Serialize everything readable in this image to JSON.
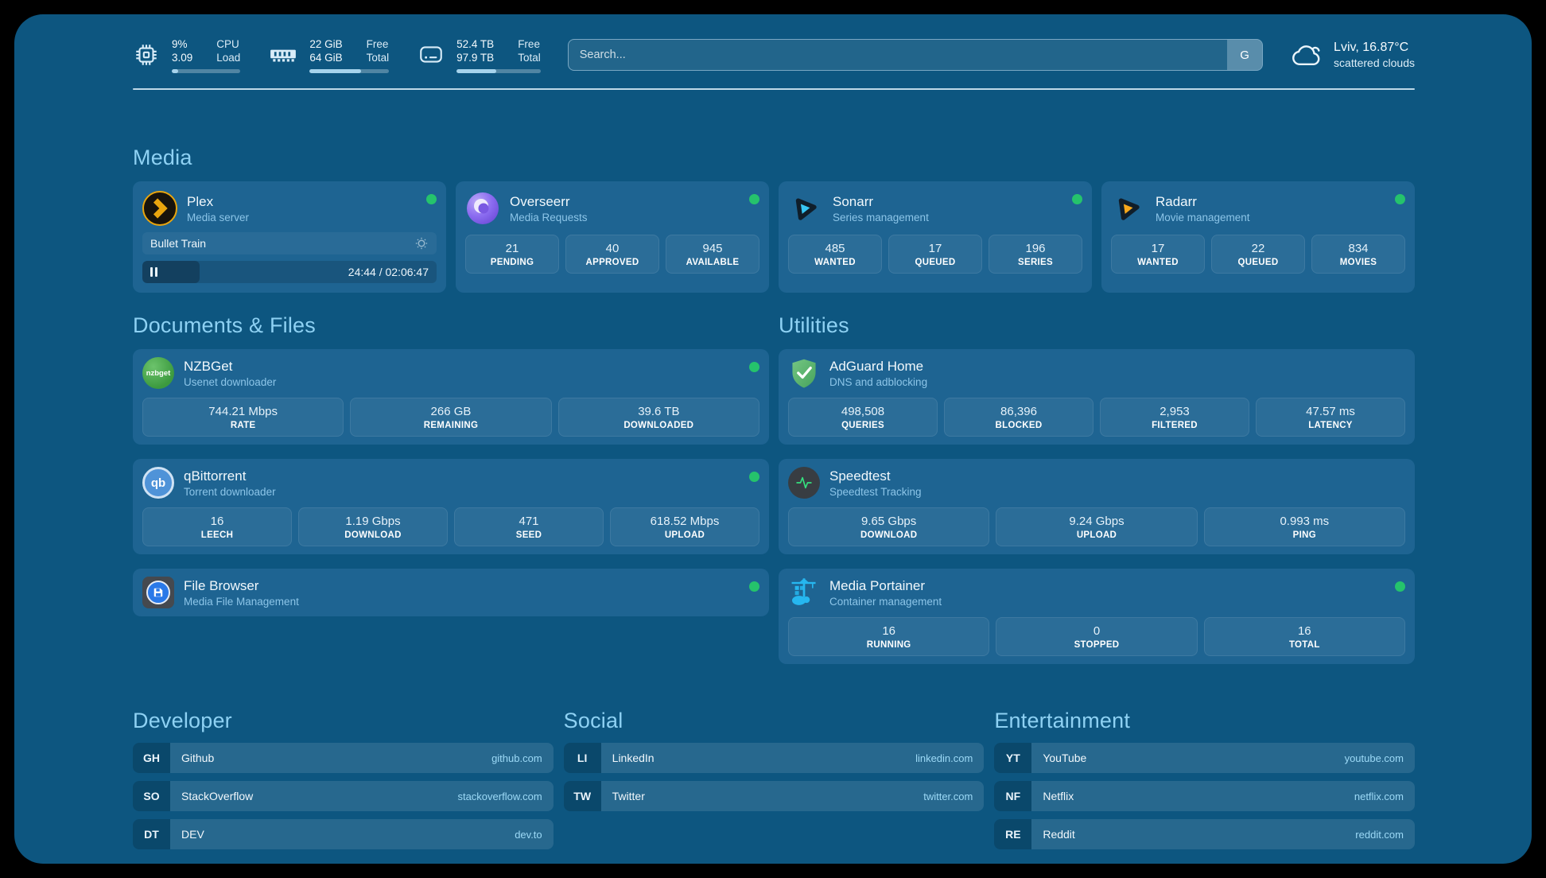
{
  "header": {
    "stats": [
      {
        "icon": "cpu-icon",
        "value_top": "9%",
        "value_bottom": "3.09",
        "label_top": "CPU",
        "label_bottom": "Load",
        "progress_pct": 9
      },
      {
        "icon": "ram-icon",
        "value_top": "22 GiB",
        "value_bottom": "64 GiB",
        "label_top": "Free",
        "label_bottom": "Total",
        "progress_pct": 65
      },
      {
        "icon": "disk-icon",
        "value_top": "52.4 TB",
        "value_bottom": "97.9 TB",
        "label_top": "Free",
        "label_bottom": "Total",
        "progress_pct": 47
      }
    ],
    "search": {
      "placeholder": "Search...",
      "engine_label": "G"
    },
    "weather": {
      "location_temp": "Lviv, 16.87°C",
      "condition": "scattered clouds"
    }
  },
  "sections": {
    "media": "Media",
    "documents": "Documents & Files",
    "utilities": "Utilities",
    "developer": "Developer",
    "social": "Social",
    "entertainment": "Entertainment"
  },
  "apps": {
    "plex": {
      "name": "Plex",
      "desc": "Media server",
      "now_playing": {
        "title": "Bullet Train",
        "time": "24:44 / 02:06:47",
        "progress_pct": 19.5
      }
    },
    "overseerr": {
      "name": "Overseerr",
      "desc": "Media Requests",
      "stats": [
        {
          "value": "21",
          "label": "PENDING"
        },
        {
          "value": "40",
          "label": "APPROVED"
        },
        {
          "value": "945",
          "label": "AVAILABLE"
        }
      ]
    },
    "sonarr": {
      "name": "Sonarr",
      "desc": "Series management",
      "stats": [
        {
          "value": "485",
          "label": "WANTED"
        },
        {
          "value": "17",
          "label": "QUEUED"
        },
        {
          "value": "196",
          "label": "SERIES"
        }
      ]
    },
    "radarr": {
      "name": "Radarr",
      "desc": "Movie management",
      "stats": [
        {
          "value": "17",
          "label": "WANTED"
        },
        {
          "value": "22",
          "label": "QUEUED"
        },
        {
          "value": "834",
          "label": "MOVIES"
        }
      ]
    },
    "nzbget": {
      "name": "NZBGet",
      "desc": "Usenet downloader",
      "logo_text": "nzbget",
      "stats": [
        {
          "value": "744.21 Mbps",
          "label": "RATE"
        },
        {
          "value": "266 GB",
          "label": "REMAINING"
        },
        {
          "value": "39.6 TB",
          "label": "DOWNLOADED"
        }
      ]
    },
    "qbittorrent": {
      "name": "qBittorrent",
      "desc": "Torrent downloader",
      "logo_text": "qb",
      "stats": [
        {
          "value": "16",
          "label": "LEECH"
        },
        {
          "value": "1.19 Gbps",
          "label": "DOWNLOAD"
        },
        {
          "value": "471",
          "label": "SEED"
        },
        {
          "value": "618.52 Mbps",
          "label": "UPLOAD"
        }
      ]
    },
    "filebrowser": {
      "name": "File Browser",
      "desc": "Media File Management"
    },
    "adguard": {
      "name": "AdGuard Home",
      "desc": "DNS and adblocking",
      "stats": [
        {
          "value": "498,508",
          "label": "QUERIES"
        },
        {
          "value": "86,396",
          "label": "BLOCKED"
        },
        {
          "value": "2,953",
          "label": "FILTERED"
        },
        {
          "value": "47.57 ms",
          "label": "LATENCY"
        }
      ]
    },
    "speedtest": {
      "name": "Speedtest",
      "desc": "Speedtest Tracking",
      "stats": [
        {
          "value": "9.65 Gbps",
          "label": "DOWNLOAD"
        },
        {
          "value": "9.24 Gbps",
          "label": "UPLOAD"
        },
        {
          "value": "0.993 ms",
          "label": "PING"
        }
      ]
    },
    "portainer": {
      "name": "Media Portainer",
      "desc": "Container management",
      "stats": [
        {
          "value": "16",
          "label": "RUNNING"
        },
        {
          "value": "0",
          "label": "STOPPED"
        },
        {
          "value": "16",
          "label": "TOTAL"
        }
      ]
    }
  },
  "links": {
    "developer": [
      {
        "abbr": "GH",
        "name": "Github",
        "url": "github.com"
      },
      {
        "abbr": "SO",
        "name": "StackOverflow",
        "url": "stackoverflow.com"
      },
      {
        "abbr": "DT",
        "name": "DEV",
        "url": "dev.to"
      }
    ],
    "social": [
      {
        "abbr": "LI",
        "name": "LinkedIn",
        "url": "linkedin.com"
      },
      {
        "abbr": "TW",
        "name": "Twitter",
        "url": "twitter.com"
      }
    ],
    "entertainment": [
      {
        "abbr": "YT",
        "name": "YouTube",
        "url": "youtube.com"
      },
      {
        "abbr": "NF",
        "name": "Netflix",
        "url": "netflix.com"
      },
      {
        "abbr": "RE",
        "name": "Reddit",
        "url": "reddit.com"
      }
    ]
  },
  "colors": {
    "page_bg": "#0d5680",
    "card_bg": "#1e6492",
    "section_title": "#8ed1f3",
    "status_online": "#25c36c",
    "url_text": "#9cd9f6",
    "plex_orange": "#e9a50e",
    "sonarr_cyan": "#38c6f4",
    "radarr_orange": "#f7a81b",
    "adguard_green": "#57b46a",
    "portainer_blue": "#26b7f0",
    "speedtest_green": "#35e07e"
  }
}
